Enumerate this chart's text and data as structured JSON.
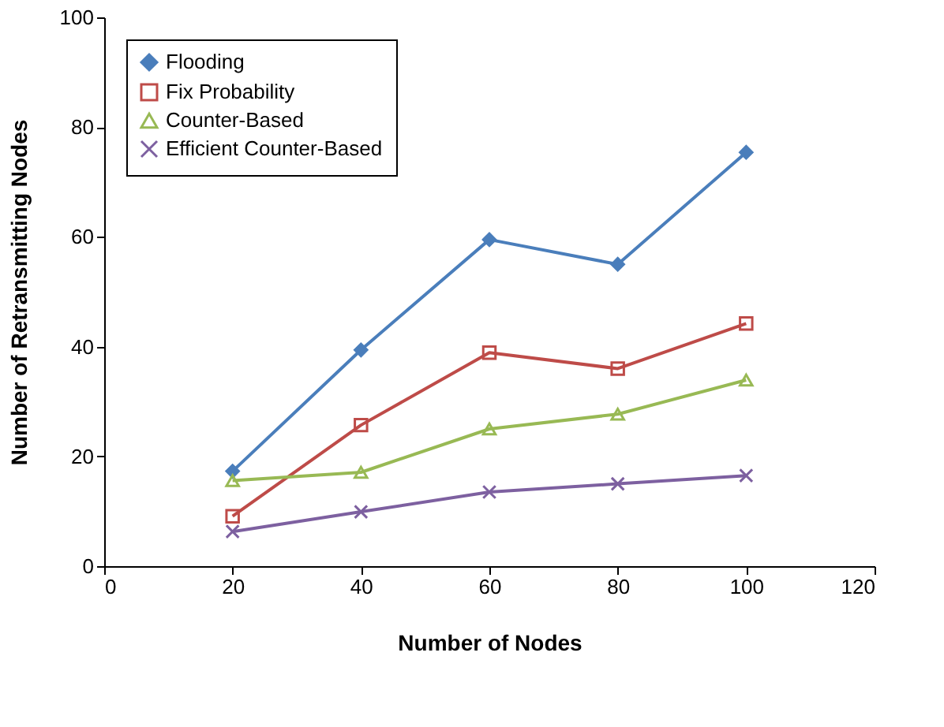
{
  "chart_data": {
    "type": "line",
    "xlabel": "Number of Nodes",
    "ylabel": "Number of Retransmitting Nodes",
    "x": [
      20,
      40,
      60,
      80,
      100
    ],
    "xlim": [
      0,
      120
    ],
    "xticks": [
      0,
      20,
      40,
      60,
      80,
      100,
      120
    ],
    "ylim": [
      0,
      100
    ],
    "yticks": [
      0,
      20,
      40,
      60,
      80,
      100
    ],
    "grid": false,
    "legend": "top left",
    "series": [
      {
        "name": "Flooding",
        "color": "#4a7ebb",
        "marker": "diamond",
        "values": [
          17.3,
          39.4,
          59.5,
          55,
          75.4
        ]
      },
      {
        "name": "Fix Probability",
        "color": "#be4b48",
        "marker": "square",
        "values": [
          9.1,
          25.7,
          38.9,
          36,
          44.2
        ]
      },
      {
        "name": "Counter-Based",
        "color": "#98b954",
        "marker": "triangle",
        "values": [
          15.6,
          17.1,
          25,
          27.7,
          33.9
        ]
      },
      {
        "name": "Efficient Counter-Based",
        "color": "#7d60a0",
        "marker": "cross",
        "values": [
          6.3,
          9.9,
          13.5,
          15,
          16.5
        ]
      }
    ]
  }
}
